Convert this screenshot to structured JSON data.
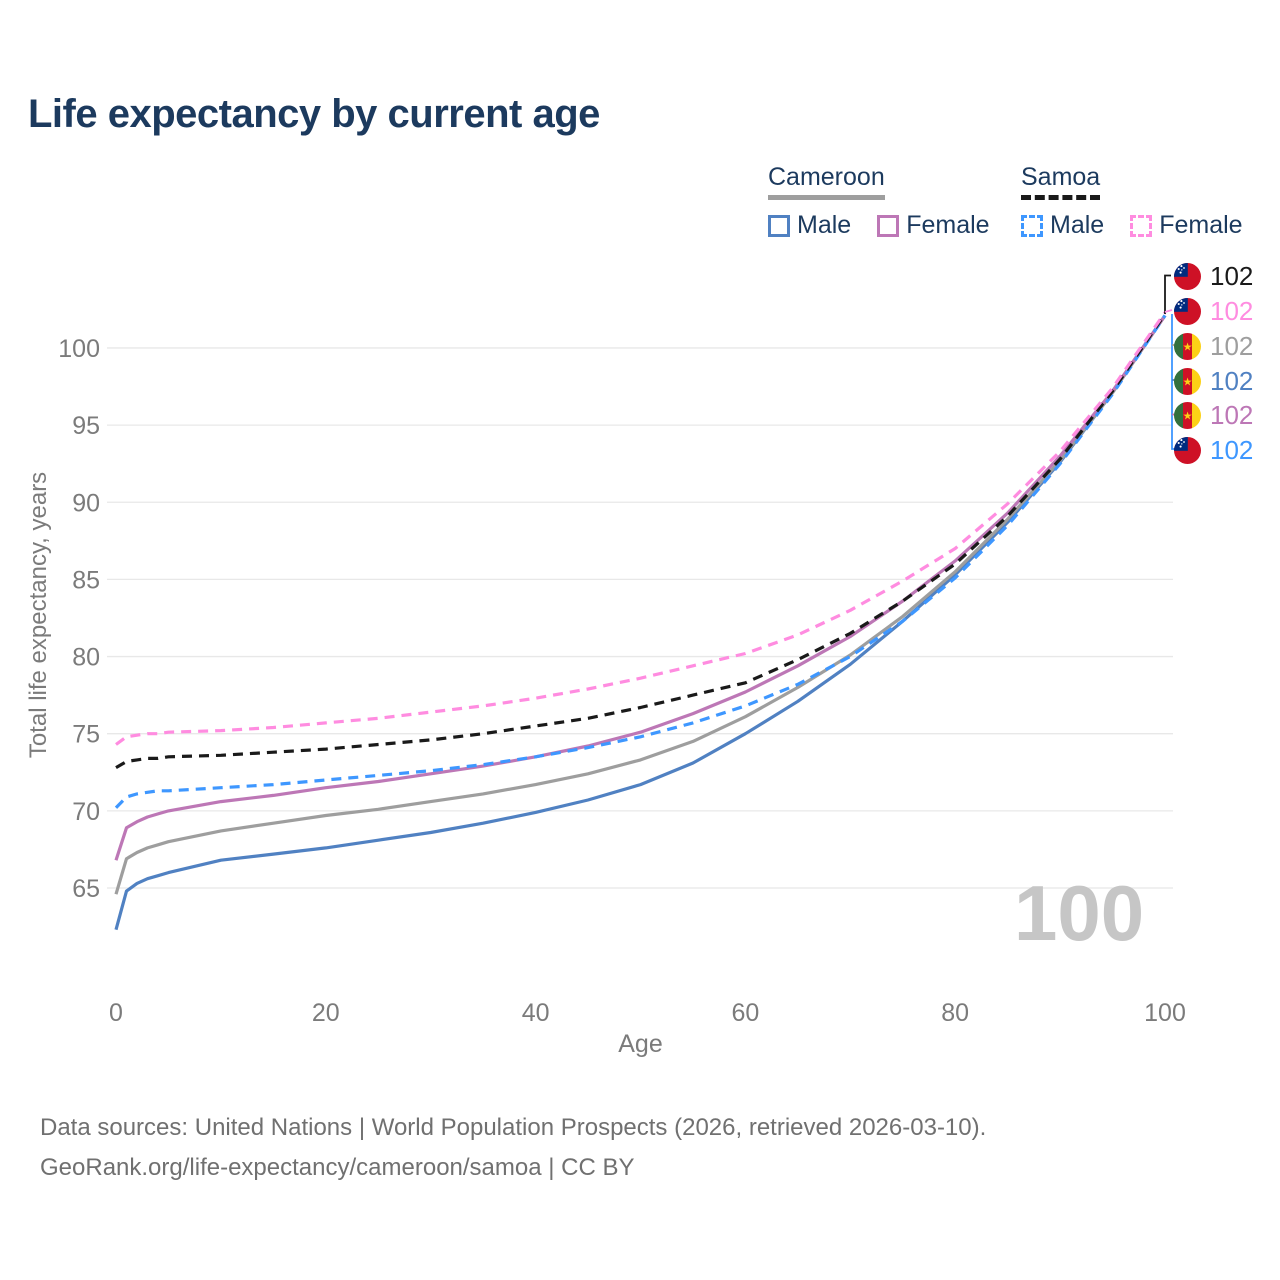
{
  "title": "Life expectancy by current age",
  "legend": {
    "groups": [
      {
        "label": "Cameroon",
        "underline_style": "solid",
        "underline_color": "#9e9e9e",
        "items": [
          {
            "label": "Male",
            "color": "#5081c2",
            "dashed": false
          },
          {
            "label": "Female",
            "color": "#bd77b6",
            "dashed": false
          }
        ]
      },
      {
        "label": "Samoa",
        "underline_style": "dashed",
        "underline_color": "#1a1a1a",
        "items": [
          {
            "label": "Male",
            "color": "#3e97ff",
            "dashed": true
          },
          {
            "label": "Female",
            "color": "#ff8ce0",
            "dashed": true
          }
        ]
      }
    ]
  },
  "chart_data": {
    "type": "line",
    "title": "Life expectancy by current age",
    "xlabel": "Age",
    "ylabel": "Total life expectancy, years",
    "xlim": [
      0,
      100
    ],
    "ylim": [
      62,
      103.5
    ],
    "x_ticks": [
      0,
      20,
      40,
      60,
      80,
      100
    ],
    "y_ticks": [
      65,
      70,
      75,
      80,
      85,
      90,
      95,
      100
    ],
    "grid": "horizontal",
    "legend_position": "top-right",
    "x": [
      0,
      1,
      2,
      3,
      4,
      5,
      10,
      15,
      20,
      25,
      30,
      35,
      40,
      45,
      50,
      55,
      60,
      65,
      70,
      75,
      80,
      85,
      90,
      95,
      100
    ],
    "series": [
      {
        "id": "cameroon-male",
        "name": "Cameroon Male",
        "country": "Cameroon",
        "sex": "Male",
        "color": "#5081c2",
        "dashed": false,
        "values": [
          62.3,
          64.8,
          65.3,
          65.6,
          65.8,
          66.0,
          66.8,
          67.2,
          67.6,
          68.1,
          68.6,
          69.2,
          69.9,
          70.7,
          71.7,
          73.1,
          75.0,
          77.1,
          79.5,
          82.3,
          85.3,
          88.7,
          92.6,
          97.1,
          102.1
        ]
      },
      {
        "id": "cameroon-all",
        "name": "Cameroon",
        "country": "Cameroon",
        "sex": "All",
        "color": "#9e9e9e",
        "dashed": false,
        "values": [
          64.6,
          66.9,
          67.3,
          67.6,
          67.8,
          68.0,
          68.7,
          69.2,
          69.7,
          70.1,
          70.6,
          71.1,
          71.7,
          72.4,
          73.3,
          74.5,
          76.1,
          78.0,
          80.1,
          82.6,
          85.5,
          88.9,
          92.7,
          97.1,
          102.1
        ]
      },
      {
        "id": "cameroon-female",
        "name": "Cameroon Female",
        "country": "Cameroon",
        "sex": "Female",
        "color": "#bd77b6",
        "dashed": false,
        "values": [
          66.8,
          68.9,
          69.3,
          69.6,
          69.8,
          70.0,
          70.6,
          71.0,
          71.5,
          71.9,
          72.4,
          72.9,
          73.5,
          74.2,
          75.1,
          76.3,
          77.7,
          79.4,
          81.3,
          83.6,
          86.2,
          89.3,
          93.0,
          97.2,
          102.1
        ]
      },
      {
        "id": "samoa-male",
        "name": "Samoa Male",
        "country": "Samoa",
        "sex": "Male",
        "color": "#3e97ff",
        "dashed": true,
        "values": [
          70.2,
          70.9,
          71.1,
          71.2,
          71.3,
          71.3,
          71.5,
          71.7,
          72.0,
          72.3,
          72.6,
          73.0,
          73.5,
          74.1,
          74.8,
          75.7,
          76.8,
          78.2,
          80.0,
          82.3,
          85.1,
          88.5,
          92.5,
          97.0,
          102.1
        ]
      },
      {
        "id": "samoa-all",
        "name": "Samoa",
        "country": "Samoa",
        "sex": "All",
        "color": "#1a1a1a",
        "dashed": true,
        "values": [
          72.8,
          73.2,
          73.3,
          73.4,
          73.4,
          73.5,
          73.6,
          73.8,
          74.0,
          74.3,
          74.6,
          75.0,
          75.5,
          76.0,
          76.7,
          77.5,
          78.3,
          79.8,
          81.5,
          83.6,
          86.0,
          89.1,
          92.8,
          97.2,
          102.2
        ]
      },
      {
        "id": "samoa-female",
        "name": "Samoa Female",
        "country": "Samoa",
        "sex": "Female",
        "color": "#ff8ce0",
        "dashed": true,
        "values": [
          74.3,
          74.8,
          74.9,
          75.0,
          75.0,
          75.1,
          75.2,
          75.4,
          75.7,
          76.0,
          76.4,
          76.8,
          77.3,
          77.9,
          78.6,
          79.4,
          80.2,
          81.4,
          83.0,
          84.9,
          87.0,
          89.9,
          93.3,
          97.4,
          102.3
        ]
      }
    ]
  },
  "end_labels": [
    {
      "flag": "samoa",
      "value": "102",
      "color": "#1a1a1a",
      "series": "samoa-all"
    },
    {
      "flag": "samoa",
      "value": "102",
      "color": "#ff8ce0",
      "series": "samoa-female"
    },
    {
      "flag": "cameroon",
      "value": "102",
      "color": "#9e9e9e",
      "series": "cameroon-all"
    },
    {
      "flag": "cameroon",
      "value": "102",
      "color": "#5081c2",
      "series": "cameroon-male"
    },
    {
      "flag": "cameroon",
      "value": "102",
      "color": "#bd77b6",
      "series": "cameroon-female"
    },
    {
      "flag": "samoa",
      "value": "102",
      "color": "#3e97ff",
      "series": "samoa-male"
    }
  ],
  "watermark": "100",
  "footer": {
    "line1": "Data sources: United Nations | World Population Prospects (2026, retrieved 2026-03-10).",
    "line2": "GeoRank.org/life-expectancy/cameroon/samoa | CC BY"
  },
  "colors": {
    "title": "#1c3a5e",
    "axis_text": "#7b7b7b",
    "gridline": "#e8e8e8",
    "watermark": "#c6c6c6",
    "footer_text": "#707070"
  }
}
